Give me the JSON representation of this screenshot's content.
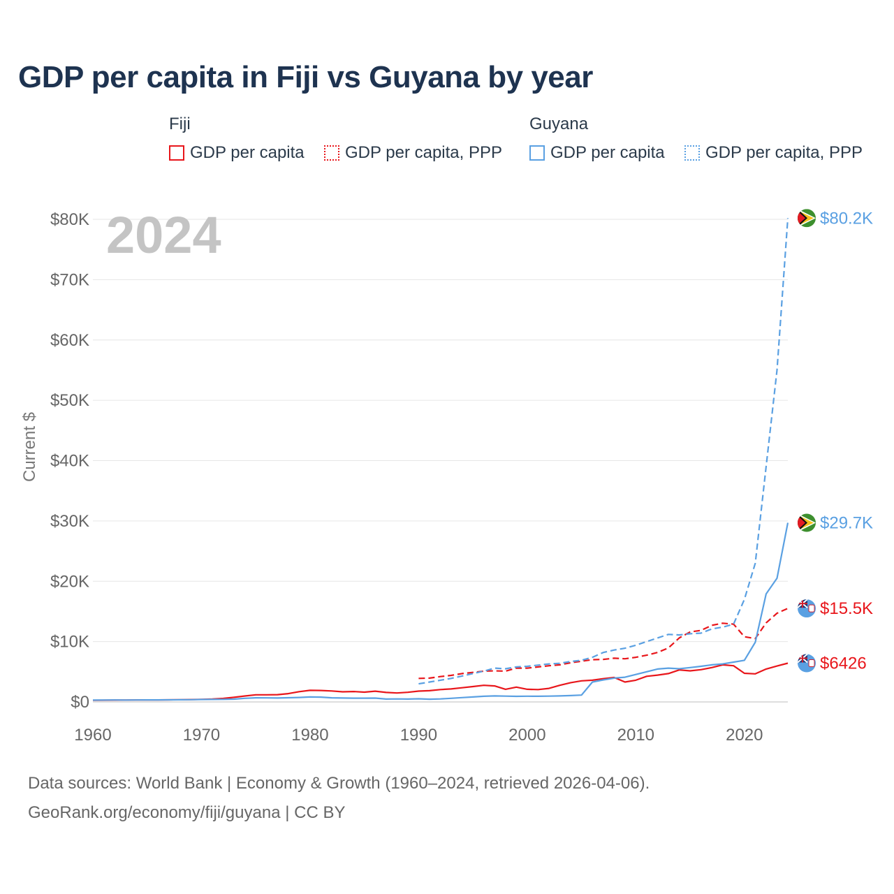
{
  "title": "GDP per capita in Fiji vs Guyana by year",
  "legend": {
    "groups": [
      {
        "name": "Fiji",
        "color": "#e8161b",
        "items": [
          {
            "label": "GDP per capita",
            "style": "solid"
          },
          {
            "label": "GDP per capita, PPP",
            "style": "dotted"
          }
        ]
      },
      {
        "name": "Guyana",
        "color": "#5aa0e2",
        "items": [
          {
            "label": "GDP per capita",
            "style": "solid"
          },
          {
            "label": "GDP per capita, PPP",
            "style": "dotted"
          }
        ]
      }
    ]
  },
  "footer": {
    "line1": "Data sources: World Bank | Economy & Growth (1960–2024, retrieved 2026-04-06).",
    "line2": "GeoRank.org/economy/fiji/guyana | CC BY"
  },
  "chart_data": {
    "type": "line",
    "title": "GDP per capita in Fiji vs Guyana by year",
    "year_label": "2024",
    "ylabel": "Current $",
    "xlabel": "",
    "xlim": [
      1960,
      2024
    ],
    "ylim": [
      0,
      80000
    ],
    "grid": true,
    "x_ticks": [
      1960,
      1970,
      1980,
      1990,
      2000,
      2010,
      2020
    ],
    "y_ticks": [
      0,
      10000,
      20000,
      30000,
      40000,
      50000,
      60000,
      70000,
      80000
    ],
    "y_tick_labels": [
      "$0",
      "$10K",
      "$20K",
      "$30K",
      "$40K",
      "$50K",
      "$60K",
      "$70K",
      "$80K"
    ],
    "series": [
      {
        "name": "Fiji GDP per capita",
        "color": "#e8161b",
        "dash": "solid",
        "end_label": "$6426",
        "points": [
          [
            1960,
            280
          ],
          [
            1961,
            290
          ],
          [
            1962,
            300
          ],
          [
            1963,
            310
          ],
          [
            1964,
            320
          ],
          [
            1965,
            330
          ],
          [
            1966,
            340
          ],
          [
            1967,
            350
          ],
          [
            1968,
            370
          ],
          [
            1969,
            390
          ],
          [
            1970,
            430
          ],
          [
            1971,
            480
          ],
          [
            1972,
            580
          ],
          [
            1973,
            760
          ],
          [
            1974,
            980
          ],
          [
            1975,
            1180
          ],
          [
            1976,
            1180
          ],
          [
            1977,
            1200
          ],
          [
            1978,
            1380
          ],
          [
            1979,
            1700
          ],
          [
            1980,
            1920
          ],
          [
            1981,
            1900
          ],
          [
            1982,
            1820
          ],
          [
            1983,
            1680
          ],
          [
            1984,
            1720
          ],
          [
            1985,
            1620
          ],
          [
            1986,
            1780
          ],
          [
            1987,
            1580
          ],
          [
            1988,
            1480
          ],
          [
            1989,
            1600
          ],
          [
            1990,
            1800
          ],
          [
            1991,
            1860
          ],
          [
            1992,
            2050
          ],
          [
            1993,
            2150
          ],
          [
            1994,
            2350
          ],
          [
            1995,
            2550
          ],
          [
            1996,
            2750
          ],
          [
            1997,
            2650
          ],
          [
            1998,
            2100
          ],
          [
            1999,
            2450
          ],
          [
            2000,
            2100
          ],
          [
            2001,
            2050
          ],
          [
            2002,
            2250
          ],
          [
            2003,
            2750
          ],
          [
            2004,
            3200
          ],
          [
            2005,
            3500
          ],
          [
            2006,
            3600
          ],
          [
            2007,
            3850
          ],
          [
            2008,
            4050
          ],
          [
            2009,
            3300
          ],
          [
            2010,
            3600
          ],
          [
            2011,
            4250
          ],
          [
            2012,
            4450
          ],
          [
            2013,
            4700
          ],
          [
            2014,
            5300
          ],
          [
            2015,
            5150
          ],
          [
            2016,
            5350
          ],
          [
            2017,
            5700
          ],
          [
            2018,
            6150
          ],
          [
            2019,
            6000
          ],
          [
            2020,
            4750
          ],
          [
            2021,
            4650
          ],
          [
            2022,
            5450
          ],
          [
            2023,
            5950
          ],
          [
            2024,
            6426
          ]
        ]
      },
      {
        "name": "Fiji GDP per capita, PPP",
        "color": "#e8161b",
        "dash": "dashed",
        "end_label": "$15.5K",
        "points": [
          [
            1990,
            3900
          ],
          [
            1991,
            3950
          ],
          [
            1992,
            4200
          ],
          [
            1993,
            4400
          ],
          [
            1994,
            4700
          ],
          [
            1995,
            4900
          ],
          [
            1996,
            5100
          ],
          [
            1997,
            5150
          ],
          [
            1998,
            5100
          ],
          [
            1999,
            5600
          ],
          [
            2000,
            5600
          ],
          [
            2001,
            5800
          ],
          [
            2002,
            6000
          ],
          [
            2003,
            6150
          ],
          [
            2004,
            6500
          ],
          [
            2005,
            6750
          ],
          [
            2006,
            7000
          ],
          [
            2007,
            7050
          ],
          [
            2008,
            7250
          ],
          [
            2009,
            7150
          ],
          [
            2010,
            7400
          ],
          [
            2011,
            7750
          ],
          [
            2012,
            8200
          ],
          [
            2013,
            8950
          ],
          [
            2014,
            10600
          ],
          [
            2015,
            11600
          ],
          [
            2016,
            11850
          ],
          [
            2017,
            12700
          ],
          [
            2018,
            13050
          ],
          [
            2019,
            12900
          ],
          [
            2020,
            10800
          ],
          [
            2021,
            10500
          ],
          [
            2022,
            13100
          ],
          [
            2023,
            14700
          ],
          [
            2024,
            15500
          ]
        ]
      },
      {
        "name": "Guyana GDP per capita",
        "color": "#5aa0e2",
        "dash": "solid",
        "end_label": "$29.7K",
        "points": [
          [
            1960,
            300
          ],
          [
            1961,
            310
          ],
          [
            1962,
            320
          ],
          [
            1963,
            310
          ],
          [
            1964,
            320
          ],
          [
            1965,
            330
          ],
          [
            1966,
            340
          ],
          [
            1967,
            350
          ],
          [
            1968,
            360
          ],
          [
            1969,
            370
          ],
          [
            1970,
            400
          ],
          [
            1971,
            420
          ],
          [
            1972,
            430
          ],
          [
            1973,
            460
          ],
          [
            1974,
            600
          ],
          [
            1975,
            680
          ],
          [
            1976,
            670
          ],
          [
            1977,
            650
          ],
          [
            1978,
            700
          ],
          [
            1979,
            740
          ],
          [
            1980,
            820
          ],
          [
            1981,
            800
          ],
          [
            1982,
            680
          ],
          [
            1983,
            650
          ],
          [
            1984,
            620
          ],
          [
            1985,
            620
          ],
          [
            1986,
            640
          ],
          [
            1987,
            480
          ],
          [
            1988,
            500
          ],
          [
            1989,
            470
          ],
          [
            1990,
            520
          ],
          [
            1991,
            450
          ],
          [
            1992,
            500
          ],
          [
            1993,
            600
          ],
          [
            1994,
            720
          ],
          [
            1995,
            820
          ],
          [
            1996,
            940
          ],
          [
            1997,
            1000
          ],
          [
            1998,
            960
          ],
          [
            1999,
            930
          ],
          [
            2000,
            950
          ],
          [
            2001,
            940
          ],
          [
            2002,
            960
          ],
          [
            2003,
            990
          ],
          [
            2004,
            1050
          ],
          [
            2005,
            1130
          ],
          [
            2006,
            3300
          ],
          [
            2007,
            3650
          ],
          [
            2008,
            3950
          ],
          [
            2009,
            4100
          ],
          [
            2010,
            4550
          ],
          [
            2011,
            5000
          ],
          [
            2012,
            5450
          ],
          [
            2013,
            5600
          ],
          [
            2014,
            5500
          ],
          [
            2015,
            5700
          ],
          [
            2016,
            5900
          ],
          [
            2017,
            6150
          ],
          [
            2018,
            6300
          ],
          [
            2019,
            6600
          ],
          [
            2020,
            6900
          ],
          [
            2021,
            9900
          ],
          [
            2022,
            17900
          ],
          [
            2023,
            20500
          ],
          [
            2024,
            29700
          ]
        ]
      },
      {
        "name": "Guyana GDP per capita, PPP",
        "color": "#5aa0e2",
        "dash": "dashed",
        "end_label": "$80.2K",
        "points": [
          [
            1990,
            3000
          ],
          [
            1991,
            3300
          ],
          [
            1992,
            3600
          ],
          [
            1993,
            3900
          ],
          [
            1994,
            4300
          ],
          [
            1995,
            4700
          ],
          [
            1996,
            5100
          ],
          [
            1997,
            5600
          ],
          [
            1998,
            5500
          ],
          [
            1999,
            5800
          ],
          [
            2000,
            5900
          ],
          [
            2001,
            6100
          ],
          [
            2002,
            6300
          ],
          [
            2003,
            6400
          ],
          [
            2004,
            6700
          ],
          [
            2005,
            6900
          ],
          [
            2006,
            7400
          ],
          [
            2007,
            8200
          ],
          [
            2008,
            8600
          ],
          [
            2009,
            8900
          ],
          [
            2010,
            9400
          ],
          [
            2011,
            10000
          ],
          [
            2012,
            10600
          ],
          [
            2013,
            11200
          ],
          [
            2014,
            11100
          ],
          [
            2015,
            11300
          ],
          [
            2016,
            11400
          ],
          [
            2017,
            12100
          ],
          [
            2018,
            12400
          ],
          [
            2019,
            12900
          ],
          [
            2020,
            17000
          ],
          [
            2021,
            23000
          ],
          [
            2022,
            39000
          ],
          [
            2023,
            55000
          ],
          [
            2024,
            80200
          ]
        ]
      }
    ]
  }
}
